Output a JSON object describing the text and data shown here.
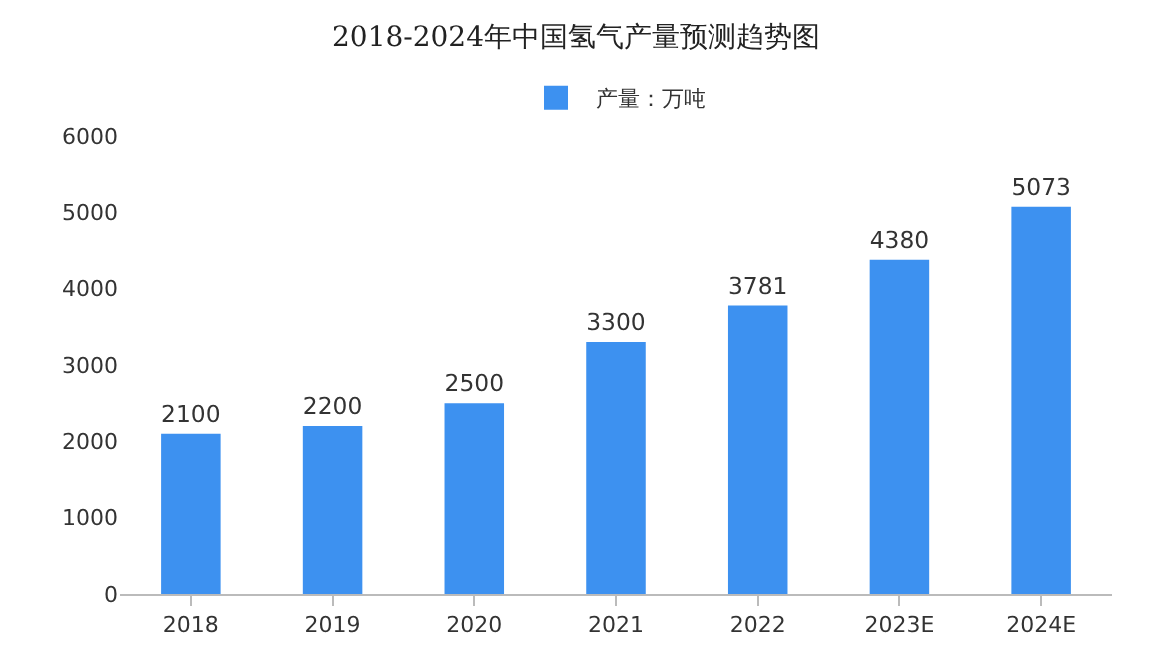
{
  "chart_data": {
    "type": "bar",
    "title": "2018-2024年中国氢气产量预测趋势图",
    "categories": [
      "2018",
      "2019",
      "2020",
      "2021",
      "2022",
      "2023E",
      "2024E"
    ],
    "series": [
      {
        "name": "产量：万吨",
        "color": "#3d91f0",
        "values": [
          2100,
          2200,
          2500,
          3300,
          3781,
          4380,
          5073
        ]
      }
    ],
    "ylim": [
      0,
      6000
    ],
    "yticks": [
      0,
      1000,
      2000,
      3000,
      4000,
      5000,
      6000
    ],
    "grid": false,
    "legend": "top",
    "data_labels": true
  }
}
